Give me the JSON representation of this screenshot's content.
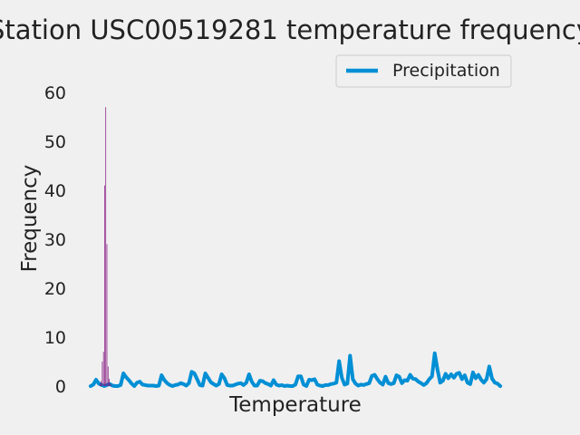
{
  "chart_data": {
    "type": "bar",
    "title": "Station USC00519281 temperature frequency",
    "xlabel": "Temperature",
    "ylabel": "Frequency",
    "ylim": [
      0,
      60
    ],
    "yticks": [
      0,
      10,
      20,
      30,
      40,
      50,
      60
    ],
    "grid": false,
    "legend_placement": "top-right",
    "series": [
      {
        "name": "Precipitation",
        "color": "#008fd5",
        "style": "line",
        "x": [
          0,
          1,
          2,
          3,
          4,
          5,
          6,
          7,
          8,
          9,
          10,
          11,
          12,
          13,
          14,
          15,
          16,
          17,
          18,
          19,
          20,
          21,
          22,
          23,
          24,
          25,
          26,
          27,
          28,
          29,
          30,
          31,
          32,
          33,
          34,
          35,
          36,
          37,
          38,
          39,
          40,
          41,
          42,
          43,
          44,
          45,
          46,
          47,
          48,
          49,
          50,
          51,
          52,
          53,
          54,
          55,
          56,
          57,
          58,
          59,
          60,
          61,
          62,
          63,
          64,
          65,
          66,
          67,
          68,
          69,
          70,
          71,
          72,
          73,
          74,
          75,
          76,
          77,
          78,
          79,
          80,
          81,
          82,
          83,
          84,
          85,
          86,
          87,
          88,
          89,
          90,
          91,
          92,
          93,
          94,
          95,
          96,
          97,
          98,
          99,
          100,
          101,
          102,
          103,
          104,
          105,
          106,
          107,
          108,
          109,
          110,
          111,
          112,
          113,
          114,
          115,
          116,
          117,
          118,
          119,
          120,
          121,
          122,
          123,
          124,
          125,
          126,
          127,
          128,
          129,
          130,
          131,
          132,
          133,
          134,
          135,
          136,
          137,
          138,
          139,
          140,
          141,
          142,
          143,
          144,
          145,
          146,
          147,
          148,
          149,
          150
        ],
        "values": [
          0.0,
          0.3,
          1.3,
          0.5,
          0.2,
          0.0,
          0.2,
          0.4,
          0.1,
          0.0,
          0.0,
          0.2,
          2.6,
          1.8,
          1.2,
          0.5,
          0.0,
          0.7,
          0.9,
          0.3,
          0.2,
          0.1,
          0.1,
          0.1,
          0.0,
          0.1,
          2.2,
          1.2,
          0.6,
          0.2,
          0.0,
          0.2,
          0.3,
          0.6,
          0.4,
          0.1,
          0.6,
          2.9,
          2.6,
          1.4,
          0.2,
          0.1,
          2.6,
          1.7,
          0.8,
          0.4,
          0.1,
          0.4,
          2.4,
          1.6,
          0.2,
          0.1,
          0.1,
          0.3,
          0.5,
          0.6,
          0.2,
          0.7,
          2.4,
          0.9,
          0.1,
          0.1,
          1.1,
          1.0,
          0.6,
          0.4,
          0.1,
          1.2,
          0.3,
          0.1,
          0.2,
          0.0,
          0.1,
          0.0,
          0.0,
          0.3,
          2.0,
          2.0,
          0.3,
          0.0,
          1.3,
          1.2,
          1.4,
          0.3,
          0.1,
          0.0,
          0.2,
          0.2,
          0.4,
          0.5,
          0.7,
          5.1,
          1.7,
          0.3,
          0.5,
          6.2,
          1.4,
          0.5,
          0.1,
          0.3,
          0.2,
          0.4,
          0.6,
          2.1,
          2.3,
          1.4,
          0.7,
          0.3,
          1.9,
          0.6,
          0.4,
          0.6,
          2.2,
          1.9,
          0.6,
          1.2,
          1.1,
          2.3,
          1.5,
          1.4,
          0.9,
          0.6,
          0.2,
          0.6,
          1.4,
          2.0,
          6.7,
          3.4,
          0.7,
          1.1,
          2.5,
          1.6,
          2.4,
          1.7,
          2.5,
          2.7,
          1.4,
          2.2,
          0.7,
          0.4,
          2.8,
          1.6,
          2.3,
          1.3,
          0.7,
          1.4,
          4.0,
          1.5,
          0.7,
          0.5,
          0.0
        ]
      },
      {
        "name": "",
        "color": "#810f7c",
        "style": "histogram",
        "x": [
          0,
          1,
          2,
          3,
          4,
          5,
          6,
          7,
          8,
          9,
          10
        ],
        "values": [
          0.5,
          1.0,
          5.0,
          7.0,
          41.0,
          57.0,
          29.0,
          4.0,
          1.5,
          0.5,
          0.2
        ]
      }
    ]
  }
}
